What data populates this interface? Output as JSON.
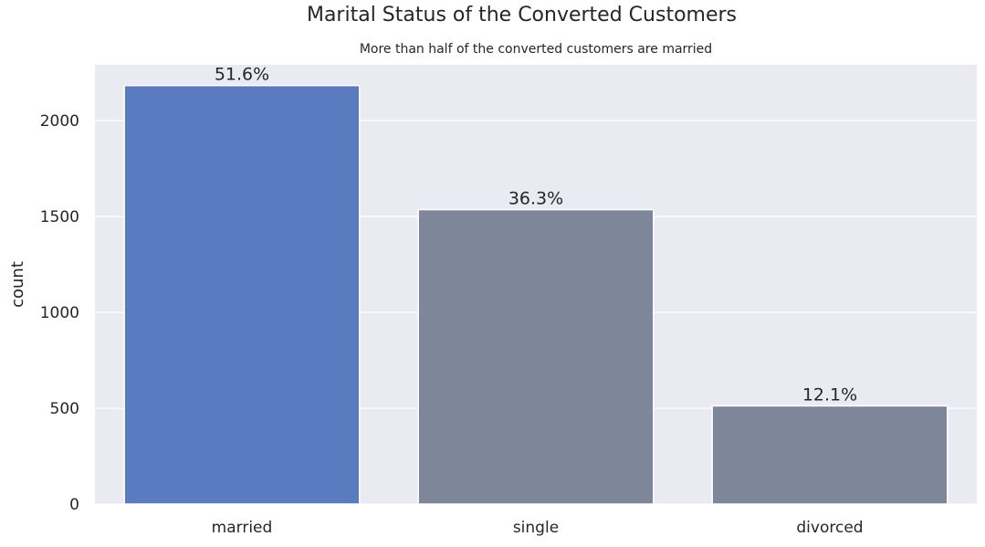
{
  "chart_data": {
    "type": "bar",
    "title": "Marital Status of the Converted Customers",
    "subtitle": "More than half of the converted customers are married",
    "xlabel": "",
    "ylabel": "count",
    "categories": [
      "married",
      "single",
      "divorced"
    ],
    "values": [
      2182,
      1535,
      512
    ],
    "data_labels": [
      "51.6%",
      "36.3%",
      "12.1%"
    ],
    "ylim": [
      0,
      2290
    ],
    "yticks": [
      0,
      500,
      1000,
      1500,
      2000
    ],
    "grid": true,
    "legend": "none",
    "colors": {
      "background": "#eaeaf2",
      "grid": "#ffffff",
      "highlight": "#5a7bbf",
      "other": "#7d8799",
      "bar_edge": "#ffffff"
    }
  }
}
